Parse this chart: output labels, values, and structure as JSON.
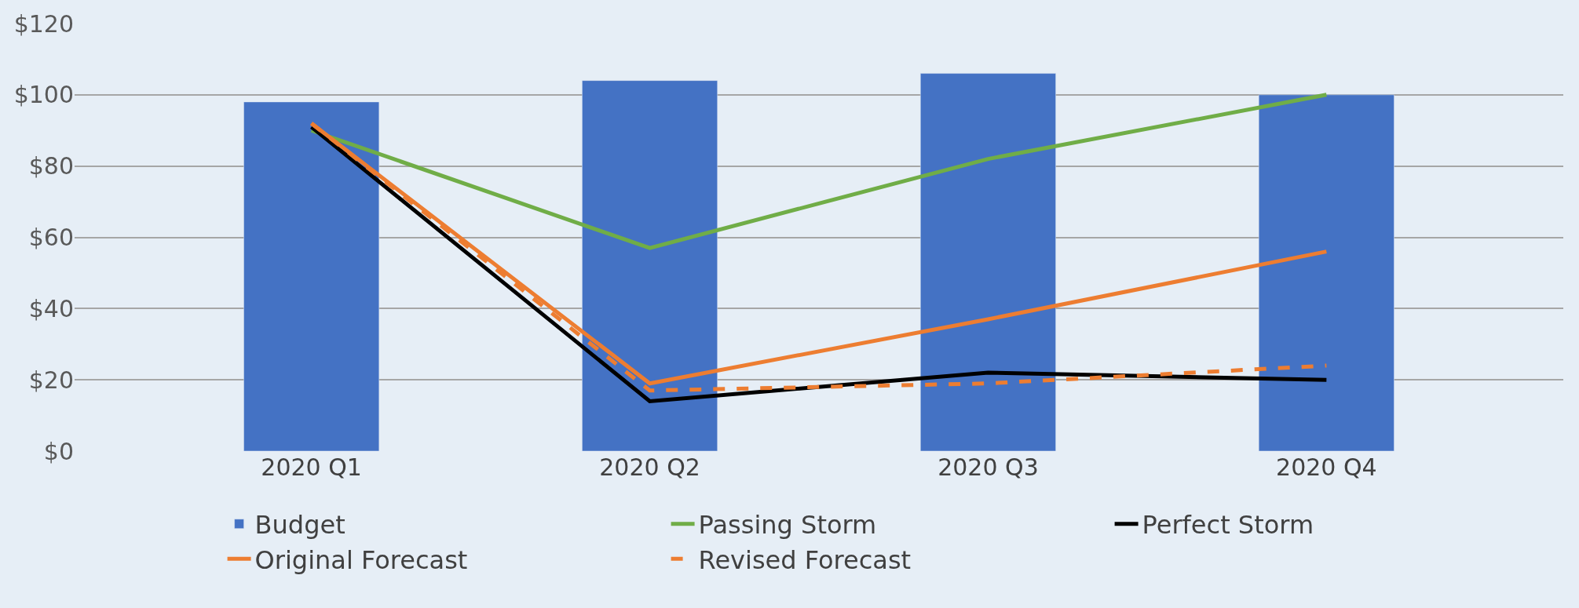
{
  "chart_data": {
    "type": "bar",
    "categories": [
      "2020 Q1",
      "2020 Q2",
      "2020 Q3",
      "2020 Q4"
    ],
    "series": [
      {
        "name": "Budget",
        "color": "#4472c4",
        "values": [
          98,
          104,
          106,
          100
        ]
      },
      {
        "name": "Passing Storm",
        "type": "line",
        "color": "#70ad47",
        "line_style": "solid",
        "values": [
          90,
          57,
          82,
          100
        ]
      },
      {
        "name": "Perfect Storm",
        "type": "line",
        "color": "#000000",
        "line_style": "solid",
        "values": [
          91,
          14,
          22,
          20
        ]
      },
      {
        "name": "Original Forecast",
        "type": "line",
        "color": "#ed7d31",
        "line_style": "solid",
        "values": [
          92,
          19,
          37,
          56
        ]
      },
      {
        "name": "Revised Forecast",
        "type": "line",
        "color": "#ed7d31",
        "line_style": "dashed",
        "values": [
          92,
          17,
          19,
          24
        ]
      }
    ],
    "ylim": [
      0,
      120
    ],
    "yticks": [
      {
        "value": 0,
        "label": "$0"
      },
      {
        "value": 20,
        "label": "$20"
      },
      {
        "value": 40,
        "label": "$40"
      },
      {
        "value": 60,
        "label": "$60"
      },
      {
        "value": 80,
        "label": "$80"
      },
      {
        "value": 100,
        "label": "$100"
      },
      {
        "value": 120,
        "label": "$120"
      }
    ],
    "grid": "y",
    "legend": "bottom"
  }
}
